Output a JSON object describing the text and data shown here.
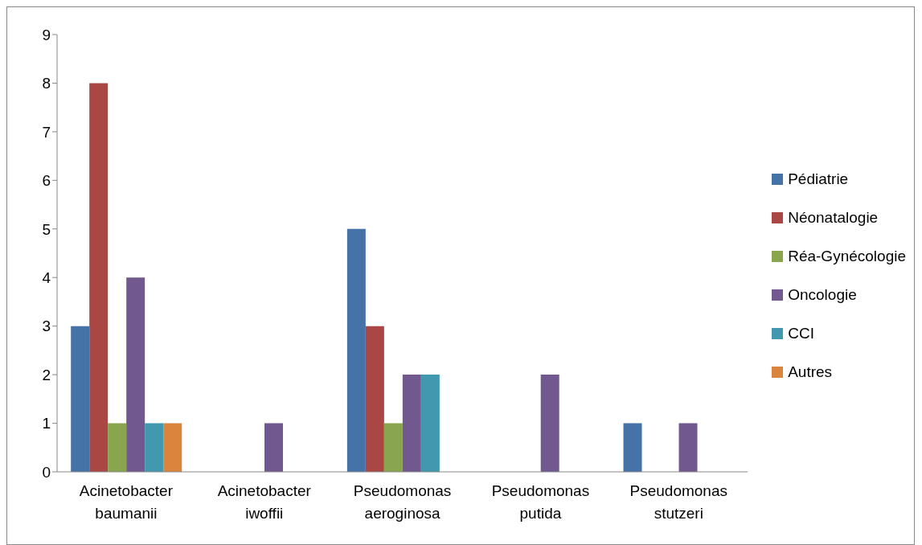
{
  "chart_data": {
    "type": "bar",
    "categories": [
      "Acinetobacter baumanii",
      "Acinetobacter iwoffii",
      "Pseudomonas aeroginosa",
      "Pseudomonas putida",
      "Pseudomonas stutzeri"
    ],
    "series": [
      {
        "name": "Pédiatrie",
        "color": "#4572a7",
        "values": [
          3,
          0,
          5,
          0,
          1
        ]
      },
      {
        "name": "Néonatalogie",
        "color": "#aa4643",
        "values": [
          8,
          0,
          3,
          0,
          0
        ]
      },
      {
        "name": "Réa-Gynécologie",
        "color": "#89a54e",
        "values": [
          1,
          0,
          1,
          0,
          0
        ]
      },
      {
        "name": "Oncologie",
        "color": "#71588f",
        "values": [
          4,
          1,
          2,
          2,
          1
        ]
      },
      {
        "name": "CCI",
        "color": "#4198af",
        "values": [
          1,
          0,
          2,
          0,
          0
        ]
      },
      {
        "name": "Autres",
        "color": "#db843d",
        "values": [
          1,
          0,
          0,
          0,
          0
        ]
      }
    ],
    "ylim": [
      0,
      9
    ],
    "yticks": [
      0,
      1,
      2,
      3,
      4,
      5,
      6,
      7,
      8,
      9
    ],
    "grid": false,
    "legend": "right"
  }
}
